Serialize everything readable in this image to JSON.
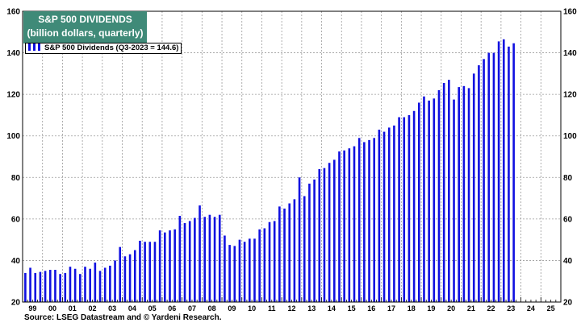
{
  "chart_data": {
    "type": "bar",
    "title": "S&P 500 DIVIDENDS",
    "subtitle": "(billion dollars, quarterly)",
    "legend": "top-left",
    "series": [
      {
        "name": "S&P 500 Dividends (Q3-2023 = 144.6)",
        "color": "#1010e0",
        "x_start": "1999-Q1",
        "values": [
          34,
          36.5,
          34,
          34.5,
          35,
          35.5,
          35.5,
          33.5,
          34,
          37,
          36,
          33.5,
          37,
          36,
          39,
          35,
          36.5,
          37.5,
          40,
          46.5,
          42,
          43,
          45,
          49.5,
          49,
          49,
          49,
          54.5,
          53.5,
          54.5,
          55,
          61.5,
          58,
          59,
          60.5,
          66.5,
          61,
          62,
          61,
          62,
          52,
          47.5,
          47,
          50,
          49,
          50.5,
          50.5,
          55,
          55.5,
          58.5,
          59,
          66,
          65,
          67.5,
          69.5,
          80,
          71,
          77,
          79,
          84,
          84.5,
          87,
          88.5,
          92.5,
          93,
          94,
          95,
          99,
          97,
          98,
          99,
          103,
          102,
          104,
          105,
          109,
          109,
          110,
          112,
          116,
          119,
          117,
          118,
          122,
          125.5,
          127,
          117.5,
          123.5,
          124,
          123,
          130,
          134,
          137,
          140,
          140,
          145.5,
          146.5,
          143,
          144.6
        ]
      }
    ],
    "ylim": [
      20,
      160
    ],
    "y_ticks": [
      20,
      40,
      60,
      80,
      100,
      120,
      140,
      160
    ],
    "x_tick_labels": [
      "99",
      "00",
      "01",
      "02",
      "03",
      "04",
      "05",
      "06",
      "07",
      "08",
      "09",
      "10",
      "11",
      "12",
      "13",
      "14",
      "15",
      "16",
      "17",
      "18",
      "19",
      "20",
      "21",
      "22",
      "23",
      "24",
      "25"
    ],
    "grid": true
  },
  "title_line1": "S&P 500 DIVIDENDS",
  "title_line2": "(billion dollars, quarterly)",
  "legend_label": "S&P 500 Dividends (Q3-2023 = 144.6)",
  "source": "Source: LSEG Datastream and © Yardeni Research."
}
